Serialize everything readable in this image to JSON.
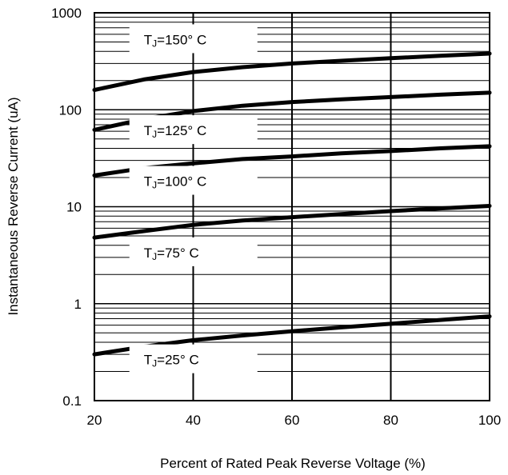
{
  "chart_data": {
    "type": "line",
    "title": "",
    "xlabel": "Percent of Rated Peak Reverse Voltage (%)",
    "ylabel": "Instantaneous Reverse Current (uA)",
    "xlim": [
      20,
      100
    ],
    "ylim": [
      0.1,
      1000
    ],
    "yscale": "log",
    "grid": true,
    "x_ticks": [
      "20",
      "40",
      "60",
      "80",
      "100"
    ],
    "y_ticks": [
      "0.1",
      "1",
      "10",
      "100",
      "1000"
    ],
    "series": [
      {
        "name": "TJ=150° C",
        "label_main": "T",
        "label_sub": "J",
        "label_rest": "=150°  C",
        "label_x": 30,
        "label_y": 520,
        "x": [
          20,
          30,
          40,
          50,
          60,
          70,
          80,
          90,
          100
        ],
        "values": [
          160,
          205,
          245,
          275,
          300,
          320,
          340,
          360,
          380
        ]
      },
      {
        "name": "TJ=125° C",
        "label_main": "T",
        "label_sub": "J",
        "label_rest": "=125°  C",
        "label_x": 30,
        "label_y": 60,
        "x": [
          20,
          30,
          40,
          50,
          60,
          70,
          80,
          90,
          100
        ],
        "values": [
          62,
          80,
          97,
          110,
          120,
          128,
          135,
          143,
          150
        ]
      },
      {
        "name": "TJ=100° C",
        "label_main": "T",
        "label_sub": "J",
        "label_rest": "=100°  C",
        "label_x": 30,
        "label_y": 18,
        "x": [
          20,
          30,
          40,
          50,
          60,
          70,
          80,
          90,
          100
        ],
        "values": [
          21,
          25,
          28,
          31,
          33,
          35.5,
          37.5,
          40,
          42
        ]
      },
      {
        "name": "TJ=75° C",
        "label_main": "T",
        "label_sub": "J",
        "label_rest": "=75°  C",
        "label_x": 30,
        "label_y": 3.3,
        "x": [
          20,
          30,
          40,
          50,
          60,
          70,
          80,
          90,
          100
        ],
        "values": [
          4.8,
          5.6,
          6.5,
          7.2,
          7.8,
          8.4,
          9.0,
          9.6,
          10.2
        ]
      },
      {
        "name": "TJ=25° C",
        "label_main": "T",
        "label_sub": "J",
        "label_rest": "=25°  C",
        "label_x": 30,
        "label_y": 0.26,
        "x": [
          20,
          30,
          40,
          50,
          60,
          70,
          80,
          90,
          100
        ],
        "values": [
          0.3,
          0.36,
          0.42,
          0.47,
          0.52,
          0.57,
          0.62,
          0.68,
          0.74
        ]
      }
    ]
  }
}
